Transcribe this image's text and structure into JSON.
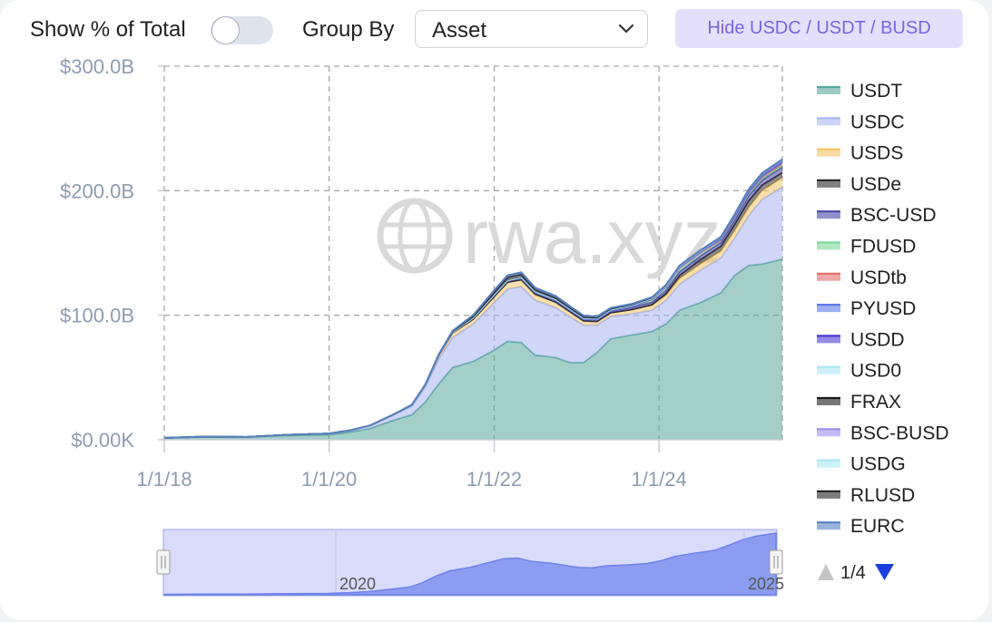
{
  "controls": {
    "show_percent_label": "Show % of Total",
    "show_percent_on": false,
    "group_by_label": "Group By",
    "group_by_value": "Asset",
    "hide_button": "Hide USDC / USDT / BUSD"
  },
  "watermark": "rwa.xyz",
  "pagination": "1/4",
  "navigator": {
    "labels": [
      "2020",
      "2025"
    ]
  },
  "chart_data": {
    "type": "area",
    "stacked": true,
    "title": "",
    "xlabel": "",
    "ylabel": "",
    "ylim": [
      0,
      300
    ],
    "y_unit": "B USD",
    "y_ticks": [
      {
        "value": 0,
        "label": "$0.00K"
      },
      {
        "value": 100,
        "label": "$100.0B"
      },
      {
        "value": 200,
        "label": "$200.0B"
      },
      {
        "value": 300,
        "label": "$300.0B"
      }
    ],
    "x_range": [
      "2018-01-01",
      "2025-06-30"
    ],
    "x_ticks": [
      {
        "date": "2018-01-01",
        "label": "1/1/18"
      },
      {
        "date": "2020-01-01",
        "label": "1/1/20"
      },
      {
        "date": "2022-01-01",
        "label": "1/1/22"
      },
      {
        "date": "2024-01-01",
        "label": "1/1/24"
      }
    ],
    "grid": true,
    "legend_position": "right",
    "x": [
      "2018-01-01",
      "2018-07-01",
      "2019-01-01",
      "2019-07-01",
      "2020-01-01",
      "2020-04-01",
      "2020-07-01",
      "2020-10-01",
      "2021-01-01",
      "2021-03-01",
      "2021-05-01",
      "2021-07-01",
      "2021-10-01",
      "2022-01-01",
      "2022-03-01",
      "2022-05-01",
      "2022-07-01",
      "2022-10-01",
      "2022-12-01",
      "2023-02-01",
      "2023-04-01",
      "2023-06-01",
      "2023-09-01",
      "2023-12-01",
      "2024-02-01",
      "2024-04-01",
      "2024-07-01",
      "2024-10-01",
      "2024-12-01",
      "2025-02-01",
      "2025-04-01",
      "2025-06-30"
    ],
    "series": [
      {
        "name": "USDT",
        "color": "#5aa89d",
        "values": [
          1.5,
          2.5,
          2.2,
          3.5,
          4.0,
          6.0,
          9.0,
          15.0,
          20.0,
          30.0,
          45.0,
          58.0,
          63.0,
          72.0,
          79.0,
          78.0,
          68.0,
          66.0,
          62.0,
          62.0,
          70.0,
          81.0,
          84.0,
          87.0,
          93.0,
          104.0,
          110.0,
          118.0,
          132.0,
          140.0,
          141.0,
          145.0
        ]
      },
      {
        "name": "USDC",
        "color": "#a9b5f2",
        "values": [
          0,
          0,
          0.1,
          0.5,
          1.0,
          1.5,
          2.5,
          4.0,
          7.0,
          12.0,
          20.0,
          24.0,
          30.0,
          38.0,
          42.0,
          45.0,
          44.0,
          40.0,
          37.0,
          30.0,
          22.0,
          18.0,
          17.0,
          17.0,
          19.0,
          21.0,
          26.0,
          28.0,
          30.0,
          40.0,
          52.0,
          58.0
        ]
      },
      {
        "name": "USDS",
        "color": "#f4c468",
        "values": [
          0,
          0,
          0,
          0,
          0,
          0,
          0,
          0.3,
          1.0,
          2.0,
          3.0,
          4.0,
          4.0,
          5.0,
          5.5,
          5.5,
          5.0,
          4.5,
          4.0,
          3.5,
          3.0,
          3.0,
          3.5,
          4.0,
          4.0,
          4.5,
          5.0,
          5.5,
          6.0,
          6.5,
          7.0,
          7.5
        ]
      },
      {
        "name": "USDe",
        "color": "#2b2b2b",
        "values": [
          0,
          0,
          0,
          0,
          0,
          0,
          0,
          0,
          0,
          0,
          0,
          0,
          0,
          0,
          0,
          0,
          0,
          0,
          0,
          0,
          0,
          0,
          0,
          0.5,
          1.5,
          2.5,
          3.5,
          4.0,
          5.0,
          5.5,
          4.5,
          4.0
        ]
      },
      {
        "name": "BSC-USD",
        "color": "#4a46a8",
        "values": [
          0,
          0,
          0,
          0,
          0,
          0,
          0,
          0,
          0,
          0,
          0.3,
          0.5,
          1.0,
          1.5,
          1.5,
          1.5,
          1.5,
          1.5,
          1.5,
          1.5,
          1.5,
          1.5,
          1.8,
          2.0,
          2.5,
          3.0,
          3.0,
          3.0,
          3.5,
          4.0,
          4.0,
          4.5
        ]
      },
      {
        "name": "FDUSD",
        "color": "#7bd89a",
        "values": [
          0,
          0,
          0,
          0,
          0,
          0,
          0,
          0,
          0,
          0,
          0,
          0,
          0,
          0,
          0,
          0,
          0,
          0,
          0,
          0,
          0,
          0.3,
          0.8,
          2.0,
          2.5,
          3.0,
          2.5,
          2.0,
          2.0,
          1.8,
          1.5,
          1.5
        ]
      },
      {
        "name": "USDtb",
        "color": "#e0706c",
        "values": [
          0,
          0,
          0,
          0,
          0,
          0,
          0,
          0,
          0,
          0,
          0,
          0,
          0,
          0,
          0,
          0,
          0,
          0,
          0,
          0,
          0,
          0,
          0,
          0,
          0,
          0,
          0,
          0,
          0.2,
          0.6,
          1.0,
          1.4
        ]
      },
      {
        "name": "PYUSD",
        "color": "#5e7ae8",
        "values": [
          0,
          0,
          0,
          0,
          0,
          0,
          0,
          0,
          0,
          0,
          0,
          0,
          0,
          0,
          0,
          0,
          0,
          0,
          0,
          0,
          0,
          0,
          0.1,
          0.3,
          0.4,
          0.5,
          0.6,
          0.7,
          0.6,
          0.7,
          0.8,
          0.9
        ]
      },
      {
        "name": "USDD",
        "color": "#4b3bd6",
        "values": [
          0,
          0,
          0,
          0,
          0,
          0,
          0,
          0,
          0,
          0,
          0,
          0,
          0,
          0,
          0,
          0.4,
          0.6,
          0.7,
          0.7,
          0.7,
          0.7,
          0.7,
          0.7,
          0.7,
          0.7,
          0.7,
          0.7,
          0.8,
          0.8,
          0.8,
          0.8,
          0.8
        ]
      },
      {
        "name": "USD0",
        "color": "#aee4f2",
        "values": [
          0,
          0,
          0,
          0,
          0,
          0,
          0,
          0,
          0,
          0,
          0,
          0,
          0,
          0,
          0,
          0,
          0,
          0,
          0,
          0,
          0,
          0,
          0,
          0,
          0,
          0,
          0.1,
          0.3,
          0.4,
          0.5,
          0.6,
          0.6
        ]
      },
      {
        "name": "FRAX",
        "color": "#1c1c1c",
        "values": [
          0,
          0,
          0,
          0,
          0,
          0,
          0,
          0,
          0,
          0,
          0.2,
          0.5,
          1.2,
          2.0,
          2.5,
          2.5,
          1.5,
          1.2,
          1.0,
          1.0,
          0.8,
          0.8,
          0.7,
          0.7,
          0.6,
          0.6,
          0.5,
          0.5,
          0.4,
          0.4,
          0.3,
          0.3
        ]
      },
      {
        "name": "BSC-BUSD",
        "color": "#9b8ef0",
        "values": [
          0,
          0,
          0,
          0,
          0,
          0,
          0,
          0,
          0,
          0,
          0.2,
          0.5,
          1.0,
          1.5,
          1.5,
          1.5,
          1.5,
          1.5,
          1.2,
          1.0,
          0.8,
          0.6,
          0.4,
          0.3,
          0.2,
          0.1,
          0.1,
          0.1,
          0,
          0,
          0,
          0
        ]
      },
      {
        "name": "USDG",
        "color": "#a9e8f6",
        "values": [
          0,
          0,
          0,
          0,
          0,
          0,
          0,
          0,
          0,
          0,
          0,
          0,
          0,
          0,
          0,
          0,
          0,
          0,
          0,
          0,
          0,
          0,
          0,
          0,
          0,
          0,
          0,
          0,
          0.1,
          0.2,
          0.3,
          0.4
        ]
      },
      {
        "name": "RLUSD",
        "color": "#262626",
        "values": [
          0,
          0,
          0,
          0,
          0,
          0,
          0,
          0,
          0,
          0,
          0,
          0,
          0,
          0,
          0,
          0,
          0,
          0,
          0,
          0,
          0,
          0,
          0,
          0,
          0,
          0,
          0,
          0,
          0.05,
          0.1,
          0.2,
          0.3
        ]
      },
      {
        "name": "EURC",
        "color": "#5784c4",
        "values": [
          0,
          0,
          0,
          0,
          0,
          0,
          0,
          0,
          0,
          0,
          0,
          0,
          0,
          0,
          0,
          0,
          0,
          0,
          0,
          0,
          0,
          0,
          0,
          0,
          0,
          0,
          0.1,
          0.1,
          0.1,
          0.1,
          0.2,
          0.2
        ]
      }
    ]
  }
}
